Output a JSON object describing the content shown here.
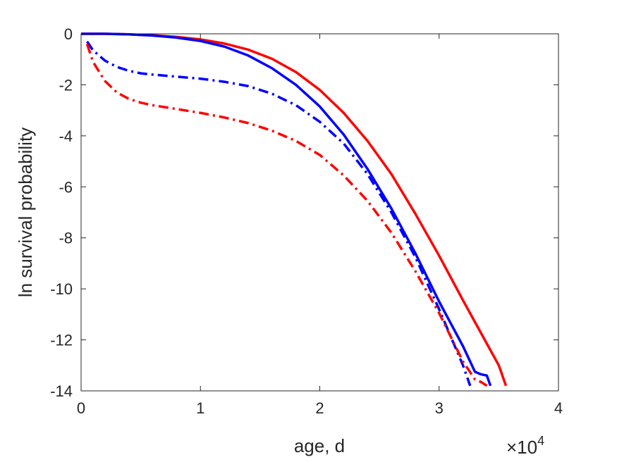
{
  "chart_data": {
    "type": "line",
    "title": "",
    "xlabel": "age, d",
    "ylabel": "ln survival probability",
    "x_exponent_label": {
      "base": "×10",
      "exp": "4"
    },
    "xlim": [
      0,
      40000
    ],
    "ylim": [
      -14,
      0
    ],
    "xticks": [
      0,
      10000,
      20000,
      30000,
      40000
    ],
    "xtick_labels": [
      "0",
      "1",
      "2",
      "3",
      "4"
    ],
    "yticks": [
      0,
      -2,
      -4,
      -6,
      -8,
      -10,
      -12,
      -14
    ],
    "ytick_labels": [
      "0",
      "-2",
      "-4",
      "-6",
      "-8",
      "-10",
      "-12",
      "-14"
    ],
    "grid": false,
    "series": [
      {
        "color": "#ff0000",
        "style": "solid",
        "x": [
          0,
          2000,
          4000,
          6000,
          8000,
          10000,
          12000,
          14000,
          16000,
          18000,
          20000,
          22000,
          24000,
          26000,
          28000,
          30000,
          32000,
          34000,
          35000,
          35600
        ],
        "y": [
          0,
          0,
          -0.02,
          -0.06,
          -0.12,
          -0.22,
          -0.38,
          -0.62,
          -0.98,
          -1.5,
          -2.2,
          -3.1,
          -4.2,
          -5.5,
          -7.05,
          -8.7,
          -10.45,
          -12.15,
          -13.0,
          -13.8
        ]
      },
      {
        "color": "#0000ff",
        "style": "solid",
        "x": [
          0,
          2000,
          4000,
          6000,
          8000,
          10000,
          12000,
          14000,
          16000,
          18000,
          20000,
          22000,
          24000,
          26000,
          28000,
          30000,
          32000,
          33000,
          33500,
          34000,
          34300
        ],
        "y": [
          0,
          0,
          -0.02,
          -0.07,
          -0.15,
          -0.28,
          -0.5,
          -0.85,
          -1.35,
          -2.0,
          -2.85,
          -3.95,
          -5.3,
          -6.85,
          -8.6,
          -10.5,
          -12.25,
          -13.25,
          -13.35,
          -13.4,
          -13.8
        ]
      },
      {
        "color": "#0000ff",
        "style": "dashdot",
        "x": [
          500,
          1000,
          2000,
          3000,
          4000,
          5000,
          6000,
          8000,
          10000,
          12000,
          14000,
          16000,
          18000,
          20000,
          22000,
          24000,
          26000,
          28000,
          30000,
          31000,
          32000,
          32600
        ],
        "y": [
          -0.3,
          -0.65,
          -1.05,
          -1.3,
          -1.45,
          -1.55,
          -1.6,
          -1.68,
          -1.76,
          -1.88,
          -2.05,
          -2.35,
          -2.8,
          -3.45,
          -4.3,
          -5.5,
          -7.0,
          -8.75,
          -10.8,
          -11.9,
          -13.0,
          -13.8
        ]
      },
      {
        "color": "#ff0000",
        "style": "dashdot",
        "x": [
          500,
          1000,
          2000,
          3000,
          4000,
          5000,
          6000,
          8000,
          10000,
          12000,
          14000,
          16000,
          18000,
          20000,
          22000,
          24000,
          26000,
          28000,
          30000,
          31000,
          32000,
          33000,
          33500,
          34000
        ],
        "y": [
          -0.4,
          -1.1,
          -1.85,
          -2.3,
          -2.55,
          -2.7,
          -2.8,
          -2.95,
          -3.1,
          -3.28,
          -3.5,
          -3.8,
          -4.2,
          -4.75,
          -5.55,
          -6.55,
          -7.8,
          -9.3,
          -10.95,
          -11.9,
          -12.85,
          -13.55,
          -13.65,
          -13.8
        ]
      }
    ]
  }
}
